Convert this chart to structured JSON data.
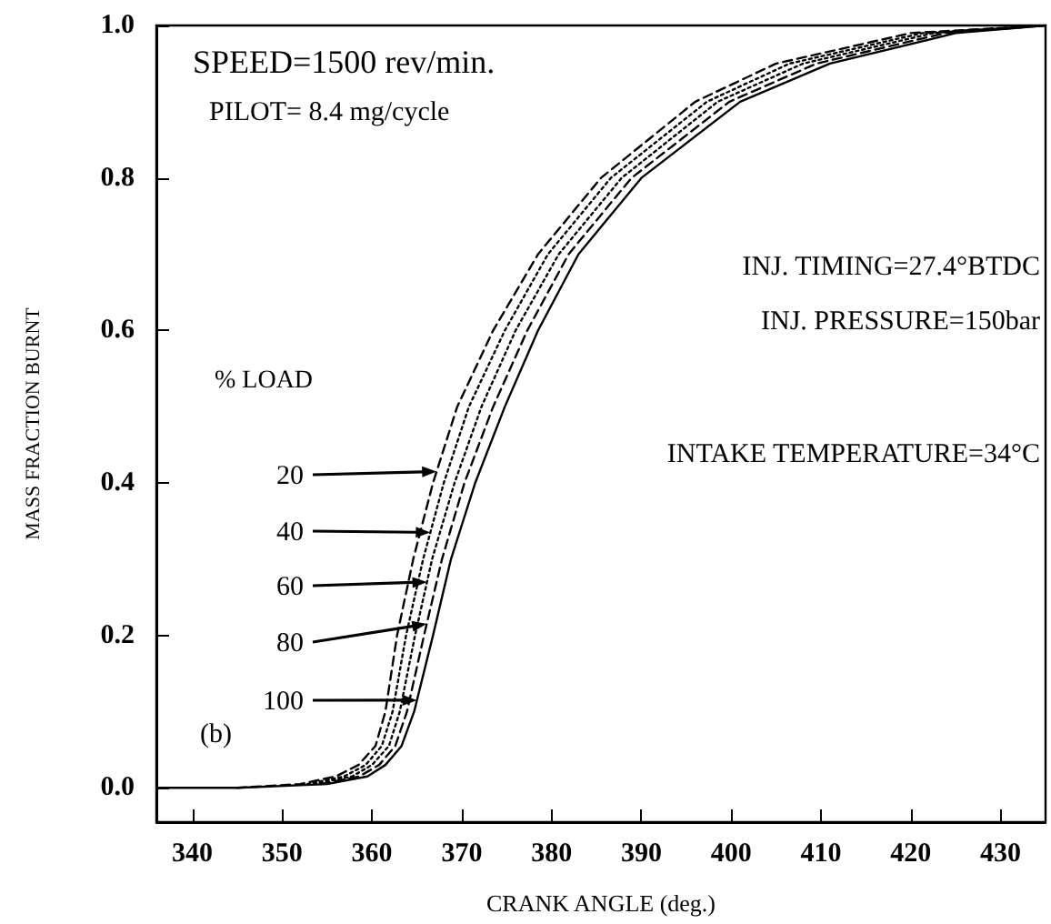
{
  "chart_data": {
    "type": "line",
    "xlabel": "CRANK ANGLE (deg.)",
    "ylabel": "MASS FRACTION BURNT",
    "legend_title": "% LOAD",
    "annotations": [
      "SPEED=1500 rev/min.",
      "PILOT= 8.4 mg/cycle",
      "INJ. TIMING=27.4°BTDC",
      "INJ. PRESSURE=150bar",
      "INTAKE TEMPERATURE=34°C",
      "(b)"
    ],
    "xlim": [
      336,
      435
    ],
    "ylim": [
      -0.045,
      1.0
    ],
    "xticks": [
      340,
      350,
      360,
      370,
      380,
      390,
      400,
      410,
      420,
      430
    ],
    "yticks": [
      {
        "value": 0,
        "label": "0.0"
      },
      {
        "value": 0.2,
        "label": "0.2"
      },
      {
        "value": 0.4,
        "label": "0.4"
      },
      {
        "value": 0.6,
        "label": "0.6"
      },
      {
        "value": 0.8,
        "label": "0.8"
      },
      {
        "value": 1.0,
        "label": "1.0"
      }
    ],
    "grid": false,
    "legend": "left",
    "marker": "none",
    "series": [
      {
        "name": "20",
        "color": "#000000",
        "line_style": "dashed",
        "x": [
          345,
          352,
          356,
          358.5,
          360.4,
          361.5,
          362.8,
          364.6,
          366.8,
          369.5,
          373.5,
          378.5,
          385.5,
          396,
          405,
          420,
          435
        ],
        "values": [
          0,
          0.005,
          0.015,
          0.03,
          0.055,
          0.1,
          0.2,
          0.3,
          0.4,
          0.5,
          0.6,
          0.7,
          0.8,
          0.9,
          0.95,
          0.99,
          1.0
        ]
      },
      {
        "name": "40",
        "color": "#000000",
        "line_style": "dotted",
        "x": [
          352.8,
          356.9,
          359.3,
          361.1,
          362.3,
          363.8,
          365.7,
          368.0,
          370.8,
          374.8,
          379.6,
          386.6,
          397.3,
          406.5,
          421.3,
          435
        ],
        "values": [
          0.005,
          0.015,
          0.03,
          0.055,
          0.1,
          0.2,
          0.3,
          0.4,
          0.5,
          0.6,
          0.7,
          0.8,
          0.9,
          0.95,
          0.99,
          1.0
        ]
      },
      {
        "name": "60",
        "color": "#000000",
        "line_style": "dotted",
        "x": [
          353.5,
          357.8,
          360,
          361.9,
          363.1,
          364.8,
          366.7,
          369.2,
          372.2,
          376,
          380.8,
          387.8,
          398.5,
          408,
          422.5,
          435
        ],
        "values": [
          0.005,
          0.015,
          0.03,
          0.055,
          0.1,
          0.2,
          0.3,
          0.4,
          0.5,
          0.6,
          0.7,
          0.8,
          0.9,
          0.95,
          0.99,
          1.0
        ]
      },
      {
        "name": "80",
        "color": "#000000",
        "line_style": "dashed",
        "x": [
          354.3,
          358.6,
          360.8,
          362.6,
          363.9,
          365.8,
          367.8,
          370.3,
          373.5,
          377.3,
          381.9,
          388.9,
          399.8,
          409.5,
          423.8,
          435
        ],
        "values": [
          0.005,
          0.015,
          0.03,
          0.055,
          0.1,
          0.2,
          0.3,
          0.4,
          0.5,
          0.6,
          0.7,
          0.8,
          0.9,
          0.95,
          0.99,
          1.0
        ]
      },
      {
        "name": "100",
        "color": "#000000",
        "line_style": "solid",
        "x": [
          336,
          345,
          355,
          359.5,
          361.5,
          363.3,
          364.7,
          366.8,
          368.8,
          371.5,
          374.8,
          378.5,
          383,
          390,
          401,
          411,
          425,
          435
        ],
        "values": [
          0,
          0,
          0.005,
          0.015,
          0.03,
          0.055,
          0.1,
          0.2,
          0.3,
          0.4,
          0.5,
          0.6,
          0.7,
          0.8,
          0.9,
          0.95,
          0.99,
          1.0
        ]
      }
    ]
  }
}
